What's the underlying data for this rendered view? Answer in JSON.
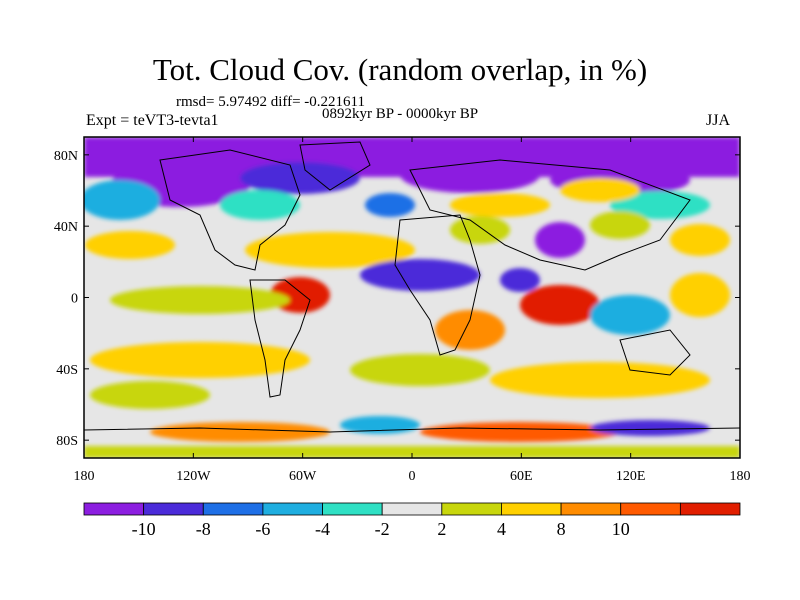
{
  "header": {
    "title": "Tot. Cloud Cov. (random overlap, in %)",
    "stats": "rmsd= 5.97492 diff= -0.221611",
    "period": "0892kyr BP - 0000kyr BP",
    "experiment": "Expt = teVT3-tevta1",
    "season": "JJA"
  },
  "map": {
    "projection": "cylindrical equidistant",
    "lon_range": [
      -180,
      180
    ],
    "lat_range": [
      -90,
      90
    ],
    "x_tick_labels": [
      "180",
      "120W",
      "60W",
      "0",
      "60E",
      "120E",
      "180"
    ],
    "y_tick_labels": [
      "80N",
      "40N",
      "0",
      "40S",
      "80S"
    ],
    "field": "total cloud cover difference (random overlap, in %)"
  },
  "colorbar": {
    "labels": [
      "-10",
      "-8",
      "-6",
      "-4",
      "-2",
      "2",
      "4",
      "8",
      "10"
    ],
    "colors": [
      "#8c1ee0",
      "#4b2bd9",
      "#1e6fe6",
      "#1faee0",
      "#2fe0c4",
      "#e6e6e6",
      "#c8d60c",
      "#ffd000",
      "#ff8c00",
      "#ff5a00",
      "#e11e00"
    ]
  }
}
